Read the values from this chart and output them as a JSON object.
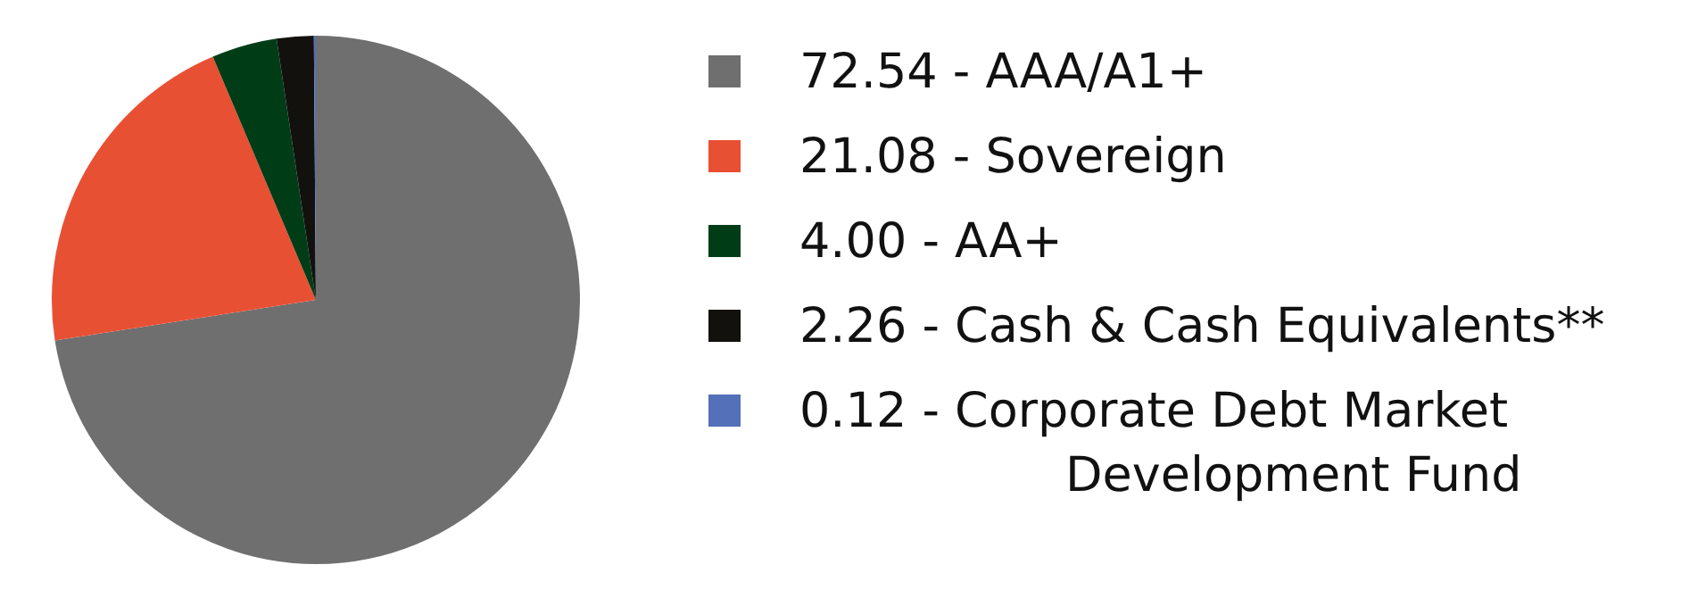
{
  "chart_data": {
    "type": "pie",
    "categories": [
      "AAA/A1+",
      "Sovereign",
      "AA+",
      "Cash & Cash Equivalents**",
      "Corporate Debt Market Development Fund"
    ],
    "values": [
      72.54,
      21.08,
      4.0,
      2.26,
      0.12
    ],
    "value_labels": [
      "72.54",
      "21.08",
      "4.00",
      "2.26",
      "0.12"
    ],
    "colors": [
      "#6f6f6f",
      "#e85034",
      "#003d17",
      "#12110d",
      "#5470b8"
    ],
    "legend": "right"
  }
}
